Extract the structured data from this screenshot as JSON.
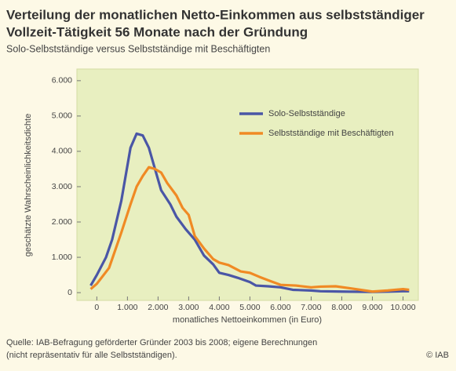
{
  "chart_data": {
    "type": "line",
    "title": [
      "Verteilung der monatlichen Netto-Einkommen aus selbstständiger",
      "Vollzeit-Tätigkeit 56 Monate nach der Gründung"
    ],
    "subtitle": "Solo-Selbstständige versus Selbstständige mit Beschäftigten",
    "xlabel": "monatliches Nettoeinkommen (in Euro)",
    "ylabel": "geschätzte Wahrscheinlichkeitsdichte",
    "source": [
      "Quelle: IAB-Befragung geförderter Gründer 2003 bis 2008; eigene Berechnungen",
      "(nicht repräsentativ für alle Selbstständigen)."
    ],
    "copyright": "© IAB",
    "xlim": [
      -650,
      10500
    ],
    "ylim": [
      -220,
      6330
    ],
    "xticks": [
      0,
      {
        "value": 1000,
        "label": "1.000"
      },
      {
        "value": 2000,
        "label": "2.000"
      },
      {
        "value": 3000,
        "label": "3.000"
      },
      {
        "value": 4000,
        "label": "4.000"
      },
      {
        "value": 5000,
        "label": "5.000"
      },
      {
        "value": 6000,
        "label": "6.000"
      },
      {
        "value": 7000,
        "label": "7.000"
      },
      {
        "value": 8000,
        "label": "8.000"
      },
      {
        "value": 9000,
        "label": "9.000"
      },
      {
        "value": 10000,
        "label": "10.000"
      }
    ],
    "yticks": [
      0,
      {
        "value": 1000,
        "label": "1.000"
      },
      {
        "value": 2000,
        "label": "2.000"
      },
      {
        "value": 3000,
        "label": "3.000"
      },
      {
        "value": 4000,
        "label": "4.000"
      },
      {
        "value": 5000,
        "label": "5.000"
      },
      {
        "value": 6000,
        "label": "6.000"
      }
    ],
    "legend": "upper right",
    "series": [
      {
        "name": "Solo-Selbstständige",
        "color": "#4a56a6",
        "x": [
          -200,
          0,
          300,
          500,
          800,
          1100,
          1300,
          1500,
          1700,
          1900,
          2100,
          2400,
          2600,
          2900,
          3200,
          3500,
          3800,
          4000,
          4300,
          4600,
          5000,
          5200,
          5600,
          6000,
          6400,
          7000,
          7300,
          8000,
          9000,
          9500,
          10000,
          10200
        ],
        "values": [
          200,
          500,
          1000,
          1500,
          2600,
          4100,
          4500,
          4450,
          4100,
          3500,
          2900,
          2500,
          2150,
          1800,
          1500,
          1050,
          800,
          560,
          500,
          420,
          300,
          200,
          180,
          150,
          80,
          60,
          40,
          30,
          20,
          30,
          40,
          40
        ]
      },
      {
        "name": "Selbstständige mit Beschäftigten",
        "color": "#f08a24",
        "x": [
          -200,
          0,
          400,
          600,
          800,
          1100,
          1300,
          1500,
          1700,
          1900,
          2100,
          2300,
          2600,
          2800,
          3000,
          3200,
          3500,
          3800,
          4000,
          4300,
          4700,
          5000,
          5300,
          5600,
          6000,
          6500,
          7000,
          7300,
          7800,
          8300,
          9000,
          9500,
          10000,
          10200
        ],
        "values": [
          100,
          250,
          700,
          1200,
          1700,
          2500,
          3000,
          3300,
          3550,
          3500,
          3400,
          3100,
          2750,
          2400,
          2200,
          1600,
          1250,
          950,
          850,
          780,
          600,
          560,
          450,
          350,
          220,
          200,
          150,
          170,
          180,
          120,
          30,
          60,
          100,
          80
        ]
      }
    ]
  }
}
